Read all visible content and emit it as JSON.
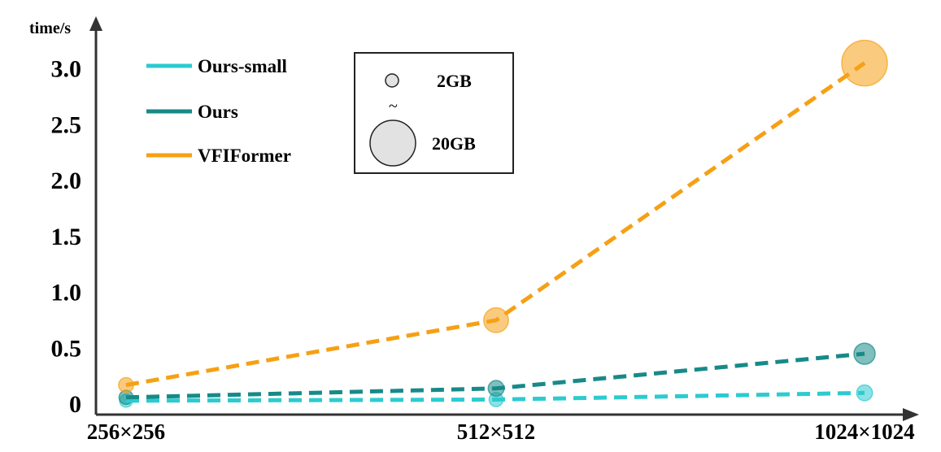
{
  "chart_data": {
    "type": "line",
    "ylabel": "time/s",
    "xlabel": "",
    "categories": [
      "256×256",
      "512×512",
      "1024×1024"
    ],
    "yticks": [
      0,
      0.5,
      1.0,
      1.5,
      2.0,
      2.5,
      3.0
    ],
    "ytick_labels": [
      "0",
      "0.5",
      "1.0",
      "1.5",
      "2.0",
      "2.5",
      "3.0"
    ],
    "ylim": [
      0,
      3.0
    ],
    "legend_position": "top-left",
    "series": [
      {
        "name": "Ours-small",
        "color": "#2ccbd0",
        "values": [
          0.03,
          0.04,
          0.1
        ],
        "memory_gb": [
          2.0,
          2.5,
          3.5
        ]
      },
      {
        "name": "Ours",
        "color": "#178a88",
        "values": [
          0.06,
          0.14,
          0.45
        ],
        "memory_gb": [
          2.5,
          3.5,
          6.5
        ]
      },
      {
        "name": "VFIFormer",
        "color": "#f6a015",
        "values": [
          0.17,
          0.75,
          3.05
        ],
        "memory_gb": [
          3.0,
          8.5,
          20.0
        ]
      }
    ],
    "memory_legend": {
      "small_label": "2GB",
      "separator": "~",
      "large_label": "20GB"
    }
  }
}
